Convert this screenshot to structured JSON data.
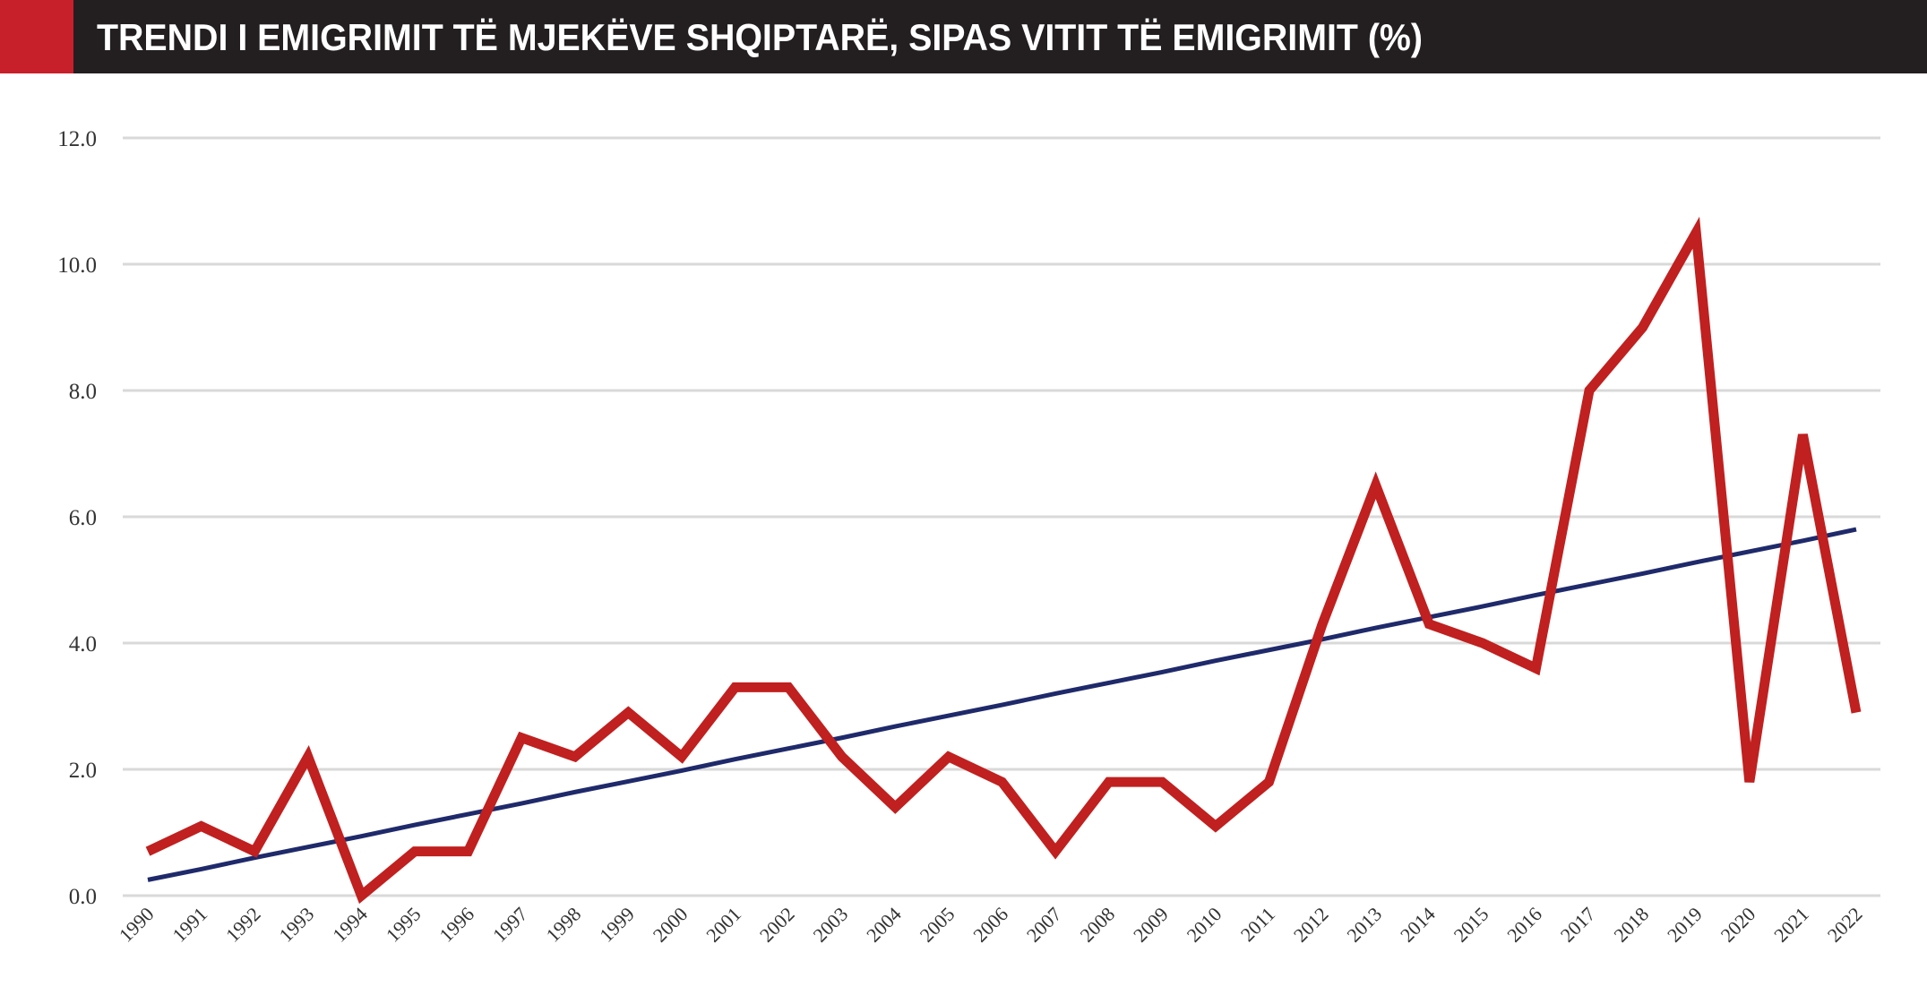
{
  "chart_data": {
    "type": "line",
    "title": "TRENDI I EMIGRIMIT TË MJEKËVE SHQIPTARË, SIPAS VITIT TË EMIGRIMIT (%)",
    "categories": [
      "1990",
      "1991",
      "1992",
      "1993",
      "1994",
      "1995",
      "1996",
      "1997",
      "1998",
      "1999",
      "2000",
      "2001",
      "2002",
      "2003",
      "2004",
      "2005",
      "2006",
      "2007",
      "2008",
      "2009",
      "2010",
      "2011",
      "2012",
      "2013",
      "2014",
      "2015",
      "2016",
      "2017",
      "2018",
      "2019",
      "2020",
      "2021",
      "2022"
    ],
    "series": [
      {
        "color": "#c0201f",
        "values": [
          0.7,
          1.1,
          0.7,
          2.2,
          0.0,
          0.7,
          0.7,
          2.5,
          2.2,
          2.9,
          2.2,
          3.3,
          3.3,
          2.2,
          1.4,
          2.2,
          1.8,
          0.7,
          1.8,
          1.8,
          1.1,
          1.8,
          4.3,
          6.5,
          4.3,
          4.0,
          3.6,
          8.0,
          9.0,
          10.5,
          1.8,
          7.3,
          2.9
        ]
      },
      {
        "color": "#1f2a6b",
        "values": [
          0.25,
          0.42,
          0.6,
          0.77,
          0.94,
          1.12,
          1.29,
          1.46,
          1.64,
          1.81,
          1.98,
          2.16,
          2.33,
          2.5,
          2.68,
          2.85,
          3.02,
          3.2,
          3.37,
          3.54,
          3.72,
          3.89,
          4.06,
          4.24,
          4.41,
          4.58,
          4.76,
          4.93,
          5.1,
          5.28,
          5.45,
          5.62,
          5.8
        ]
      }
    ],
    "ylim": [
      0,
      12
    ],
    "yticks": [
      {
        "value": 0,
        "label": "0.0"
      },
      {
        "value": 2,
        "label": "2.0"
      },
      {
        "value": 4,
        "label": "4.0"
      },
      {
        "value": 6,
        "label": "6.0"
      },
      {
        "value": 8,
        "label": "8.0"
      },
      {
        "value": 10,
        "label": "10.0"
      },
      {
        "value": 12,
        "label": "12.0"
      }
    ],
    "grid": true
  }
}
